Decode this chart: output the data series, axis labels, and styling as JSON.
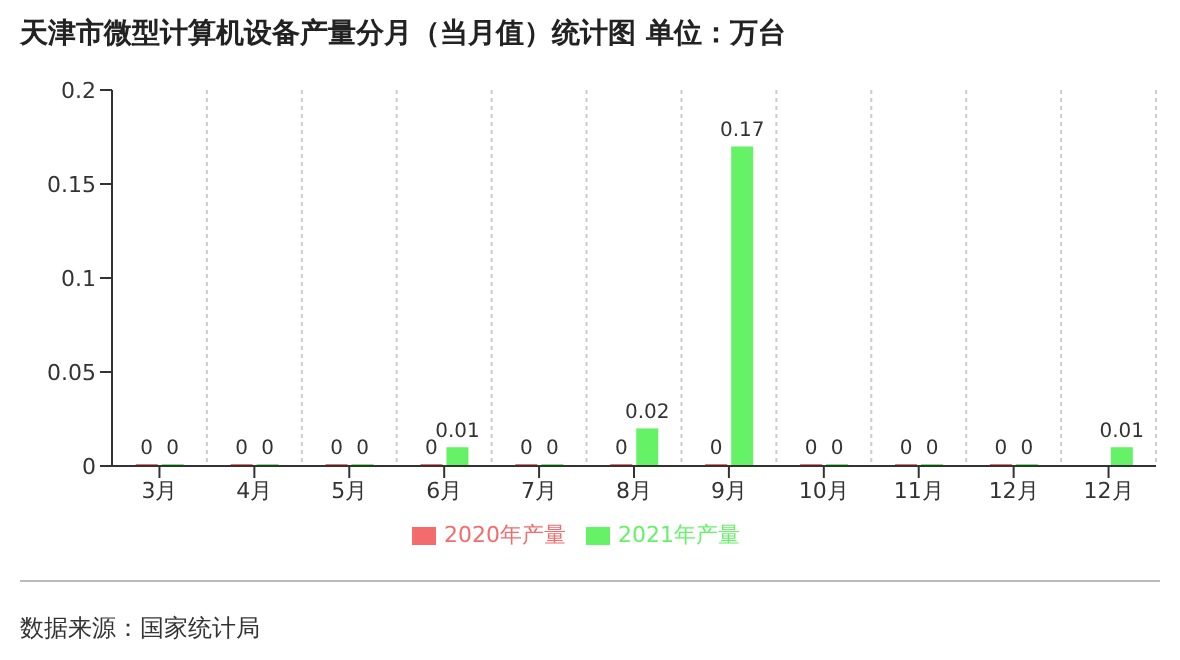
{
  "chart_data": {
    "type": "bar",
    "title": "天津市微型计算机设备产量分月（当月值）统计图 单位：万台",
    "categories": [
      "3月",
      "4月",
      "5月",
      "6月",
      "7月",
      "8月",
      "9月",
      "10月",
      "11月",
      "12月",
      "12月"
    ],
    "series": [
      {
        "name": "2020年产量",
        "color": "#f46b6b",
        "values": [
          0,
          0,
          0,
          0,
          0,
          0,
          0,
          0,
          0,
          0,
          null
        ]
      },
      {
        "name": "2021年产量",
        "color": "#66f266",
        "values": [
          0,
          0,
          0,
          0.01,
          0,
          0.02,
          0.17,
          0,
          0,
          0,
          0.01
        ]
      }
    ],
    "ylim": [
      0,
      0.2
    ],
    "yticks": [
      0,
      0.05,
      0.1,
      0.15,
      0.2
    ],
    "grid": "x",
    "legend": "bottom",
    "data_labels": true,
    "annotations": [
      "数据来源：国家统计局"
    ]
  }
}
